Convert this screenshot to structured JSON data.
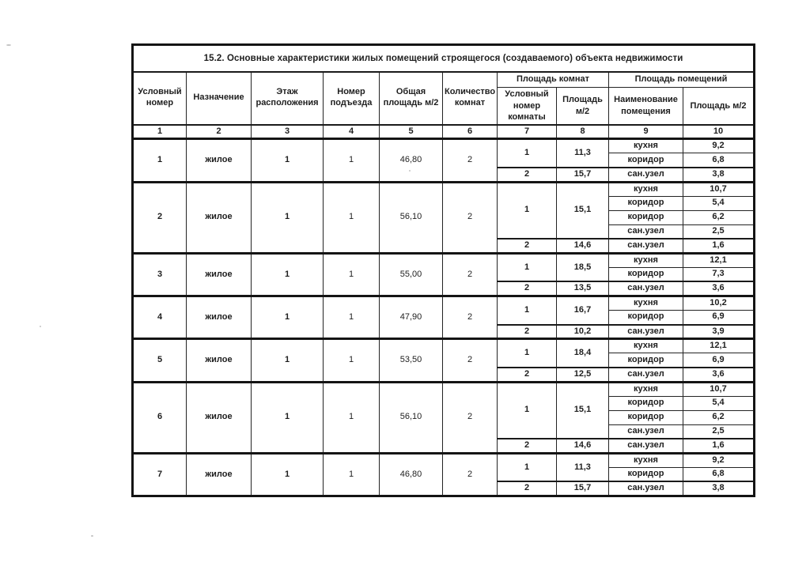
{
  "colors": {
    "ink": "#1e1e1e",
    "paper": "#ffffff"
  },
  "table": {
    "title": "15.2. Основные характеристики жилых помещений строящегося (создаваемого) объекта недвижимости",
    "groups": [
      {
        "label": "Площадь комнат"
      },
      {
        "label": "Площадь помещений"
      }
    ],
    "columns": [
      {
        "label": "Условный номер",
        "num": "1"
      },
      {
        "label": "Назначение",
        "num": "2"
      },
      {
        "label": "Этаж расположения",
        "num": "3"
      },
      {
        "label": "Номер подъезда",
        "num": "4"
      },
      {
        "label": "Общая площадь м/2",
        "num": "5"
      },
      {
        "label": "Количество комнат",
        "num": "6"
      },
      {
        "label": "Условный номер комнаты",
        "num": "7"
      },
      {
        "label": "Площадь м/2",
        "num": "8"
      },
      {
        "label": "Наименование помещения",
        "num": "9"
      },
      {
        "label": "Площадь м/2",
        "num": "10"
      }
    ],
    "apartments": [
      {
        "number": "1",
        "purpose": "жилое",
        "floor": "1",
        "entrance": "1",
        "total_area": "46,80",
        "rooms_count": "2",
        "rooms": [
          {
            "room_number": "1",
            "room_area": "11,3",
            "premises": [
              {
                "name": "кухня",
                "area": "9,2"
              },
              {
                "name": "коридор",
                "area": "6,8"
              }
            ]
          },
          {
            "room_number": "2",
            "room_area": "15,7",
            "premises": [
              {
                "name": "сан.узел",
                "area": "3,8"
              }
            ]
          }
        ]
      },
      {
        "number": "2",
        "purpose": "жилое",
        "floor": "1",
        "entrance": "1",
        "total_area": "56,10",
        "rooms_count": "2",
        "rooms": [
          {
            "room_number": "1",
            "room_area": "15,1",
            "premises": [
              {
                "name": "кухня",
                "area": "10,7"
              },
              {
                "name": "коридор",
                "area": "5,4"
              },
              {
                "name": "коридор",
                "area": "6,2"
              },
              {
                "name": "сан.узел",
                "area": "2,5"
              }
            ]
          },
          {
            "room_number": "2",
            "room_area": "14,6",
            "premises": [
              {
                "name": "сан.узел",
                "area": "1,6"
              }
            ]
          }
        ]
      },
      {
        "number": "3",
        "purpose": "жилое",
        "floor": "1",
        "entrance": "1",
        "total_area": "55,00",
        "rooms_count": "2",
        "rooms": [
          {
            "room_number": "1",
            "room_area": "18,5",
            "premises": [
              {
                "name": "кухня",
                "area": "12,1"
              },
              {
                "name": "коридор",
                "area": "7,3"
              }
            ]
          },
          {
            "room_number": "2",
            "room_area": "13,5",
            "premises": [
              {
                "name": "сан.узел",
                "area": "3,6"
              }
            ]
          }
        ]
      },
      {
        "number": "4",
        "purpose": "жилое",
        "floor": "1",
        "entrance": "1",
        "total_area": "47,90",
        "rooms_count": "2",
        "rooms": [
          {
            "room_number": "1",
            "room_area": "16,7",
            "premises": [
              {
                "name": "кухня",
                "area": "10,2"
              },
              {
                "name": "коридор",
                "area": "6,9"
              }
            ]
          },
          {
            "room_number": "2",
            "room_area": "10,2",
            "premises": [
              {
                "name": "сан.узел",
                "area": "3,9"
              }
            ]
          }
        ]
      },
      {
        "number": "5",
        "purpose": "жилое",
        "floor": "1",
        "entrance": "1",
        "total_area": "53,50",
        "rooms_count": "2",
        "rooms": [
          {
            "room_number": "1",
            "room_area": "18,4",
            "premises": [
              {
                "name": "кухня",
                "area": "12,1"
              },
              {
                "name": "коридор",
                "area": "6,9"
              }
            ]
          },
          {
            "room_number": "2",
            "room_area": "12,5",
            "premises": [
              {
                "name": "сан.узел",
                "area": "3,6"
              }
            ]
          }
        ]
      },
      {
        "number": "6",
        "purpose": "жилое",
        "floor": "1",
        "entrance": "1",
        "total_area": "56,10",
        "rooms_count": "2",
        "rooms": [
          {
            "room_number": "1",
            "room_area": "15,1",
            "premises": [
              {
                "name": "кухня",
                "area": "10,7"
              },
              {
                "name": "коридор",
                "area": "5,4"
              },
              {
                "name": "коридор",
                "area": "6,2"
              },
              {
                "name": "сан.узел",
                "area": "2,5"
              }
            ]
          },
          {
            "room_number": "2",
            "room_area": "14,6",
            "premises": [
              {
                "name": "сан.узел",
                "area": "1,6"
              }
            ]
          }
        ]
      },
      {
        "number": "7",
        "purpose": "жилое",
        "floor": "1",
        "entrance": "1",
        "total_area": "46,80",
        "rooms_count": "2",
        "rooms": [
          {
            "room_number": "1",
            "room_area": "11,3",
            "premises": [
              {
                "name": "кухня",
                "area": "9,2"
              },
              {
                "name": "коридор",
                "area": "6,8"
              }
            ]
          },
          {
            "room_number": "2",
            "room_area": "15,7",
            "premises": [
              {
                "name": "сан.узел",
                "area": "3,8"
              }
            ]
          }
        ]
      }
    ]
  }
}
